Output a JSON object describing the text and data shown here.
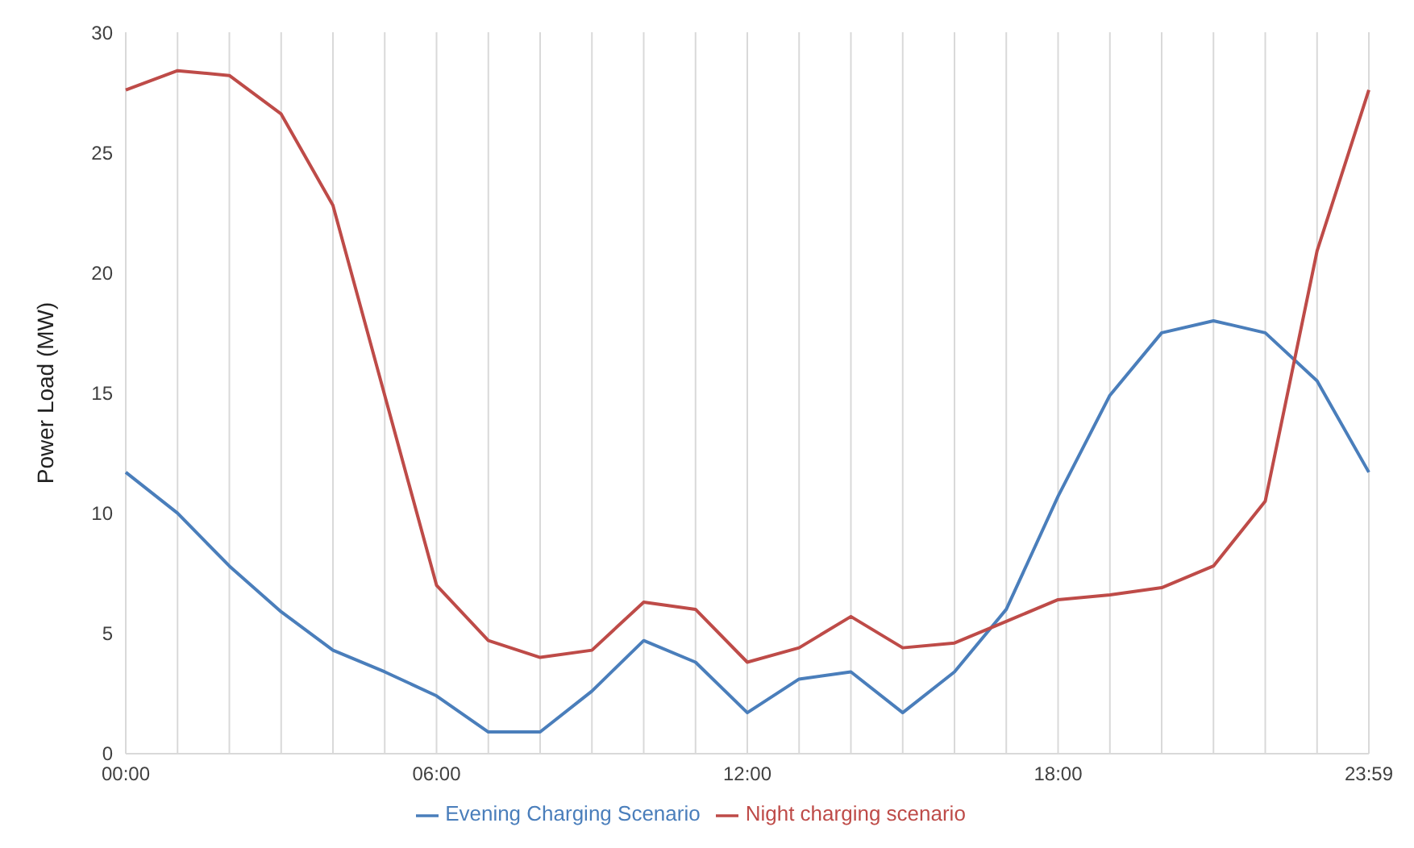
{
  "chart_data": {
    "type": "line",
    "ylabel": "Power Load (MW)",
    "categories": [
      "00:00",
      null,
      null,
      null,
      null,
      null,
      "06:00",
      null,
      null,
      null,
      null,
      null,
      "12:00",
      null,
      null,
      null,
      null,
      null,
      "18:00",
      null,
      null,
      null,
      null,
      null,
      "23:59"
    ],
    "series": [
      {
        "name": "Evening Charging Scenario",
        "color": "#4a7ebb",
        "values": [
          11.7,
          10.0,
          7.8,
          5.9,
          4.3,
          3.4,
          2.4,
          0.9,
          0.9,
          2.6,
          4.7,
          3.8,
          1.7,
          3.1,
          3.4,
          1.7,
          3.4,
          6.0,
          10.7,
          14.9,
          17.5,
          18.0,
          17.5,
          15.5,
          11.7
        ]
      },
      {
        "name": "Night charging scenario",
        "color": "#be4b48",
        "values": [
          27.6,
          28.4,
          28.2,
          26.6,
          22.8,
          14.9,
          7.0,
          4.7,
          4.0,
          4.3,
          6.3,
          6.0,
          3.8,
          4.4,
          5.7,
          4.4,
          4.6,
          5.5,
          6.4,
          6.6,
          6.9,
          7.8,
          10.5,
          20.9,
          27.6
        ]
      }
    ],
    "ylim": [
      0,
      30
    ],
    "yticks": [
      0,
      5,
      10,
      15,
      20,
      25,
      30
    ],
    "grid": "x",
    "legend": "bottom",
    "marker": "none",
    "line_style": "solid"
  }
}
